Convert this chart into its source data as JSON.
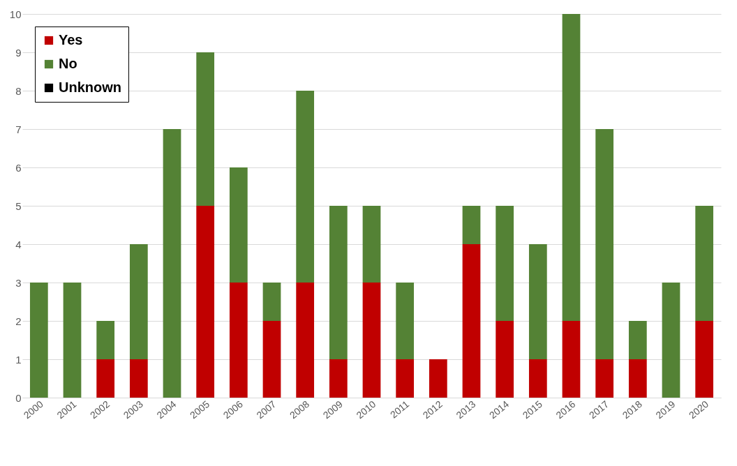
{
  "chart_data": {
    "type": "bar",
    "stacked": true,
    "categories": [
      "2000",
      "2001",
      "2002",
      "2003",
      "2004",
      "2005",
      "2006",
      "2007",
      "2008",
      "2009",
      "2010",
      "2011",
      "2012",
      "2013",
      "2014",
      "2015",
      "2016",
      "2017",
      "2018",
      "2019",
      "2020"
    ],
    "series": [
      {
        "name": "Yes",
        "color": "#c00000",
        "values": [
          0,
          0,
          1,
          1,
          0,
          5,
          3,
          2,
          3,
          1,
          3,
          1,
          1,
          4,
          2,
          1,
          2,
          1,
          1,
          0,
          2
        ]
      },
      {
        "name": "No",
        "color": "#548235",
        "values": [
          3,
          3,
          1,
          3,
          7,
          4,
          3,
          1,
          5,
          4,
          2,
          2,
          0,
          1,
          3,
          3,
          8,
          6,
          1,
          3,
          3
        ]
      },
      {
        "name": "Unknown",
        "color": "#000000",
        "values": [
          0,
          0,
          0,
          0,
          0,
          0,
          0,
          0,
          0,
          0,
          0,
          0,
          0,
          0,
          0,
          0,
          0,
          0,
          0,
          0,
          0
        ]
      }
    ],
    "ylim": [
      0,
      10
    ],
    "yticks": [
      0,
      1,
      2,
      3,
      4,
      5,
      6,
      7,
      8,
      9,
      10
    ],
    "grid": "y",
    "legend": "top left"
  }
}
